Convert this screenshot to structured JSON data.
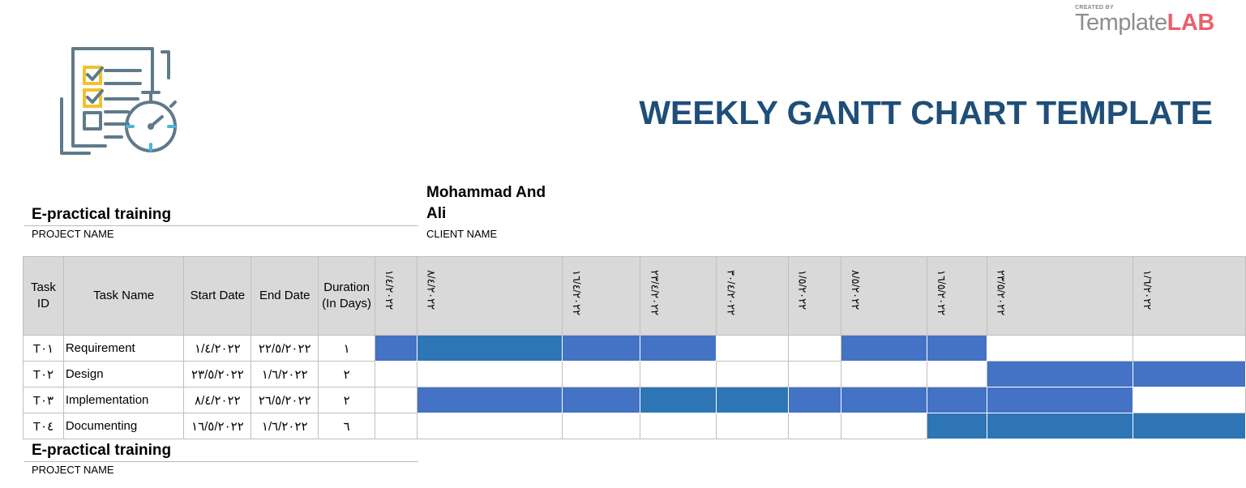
{
  "brand": {
    "created_by": "CREATED BY",
    "name_part1": "Template",
    "name_part2": "LAB"
  },
  "icon": "checklist-stopwatch-icon",
  "title": "WEEKLY GANTT CHART TEMPLATE",
  "project": {
    "value": "E-practical training",
    "label": "PROJECT NAME"
  },
  "client": {
    "value": "Mohammad And Ali",
    "label": "CLIENT NAME"
  },
  "footer_project": {
    "value": "E-practical training",
    "label": "PROJECT NAME"
  },
  "table": {
    "headers": {
      "task_id": "Task ID",
      "task_name": "Task Name",
      "start_date": "Start Date",
      "end_date": "End Date",
      "duration": "Duration (In Days)"
    },
    "week_dates": [
      "١/٤/٢٠٢٢",
      "٨/٤/٢٠٢٢",
      "١٦/٤/٢٠٢٢",
      "٢٣/٤/٢٠٢٢",
      "٣٠/٤/٢٠٢٢",
      "١/٥/٢٠٢٢",
      "٨/٥/٢٠٢٢",
      "١٦/٥/٢٠٢٢",
      "٢٣/٥/٢٠٢٢",
      "١/٦/٢٠٢٢"
    ],
    "rows": [
      {
        "id": "T٠١",
        "name": "Requirement",
        "start": "١/٤/٢٠٢٢",
        "end": "٢٢/٥/٢٠٢٢",
        "duration": "١",
        "bars": [
          "a",
          "b",
          "a",
          "a",
          "",
          "",
          "a",
          "a",
          "",
          ""
        ]
      },
      {
        "id": "T٠٢",
        "name": "Design",
        "start": "٢٣/٥/٢٠٢٢",
        "end": "١/٦/٢٠٢٢",
        "duration": "٢",
        "bars": [
          "",
          "",
          "",
          "",
          "",
          "",
          "",
          "",
          "a",
          "a"
        ]
      },
      {
        "id": "T٠٣",
        "name": "Implementation",
        "start": "٨/٤/٢٠٢٢",
        "end": "٢٦/٥/٢٠٢٢",
        "duration": "٢",
        "bars": [
          "",
          "a",
          "a",
          "b",
          "b",
          "a",
          "a",
          "a",
          "a",
          ""
        ]
      },
      {
        "id": "T٠٤",
        "name": "Documenting",
        "start": "١٦/٥/٢٠٢٢",
        "end": "١/٦/٢٠٢٢",
        "duration": "٦",
        "bars": [
          "",
          "",
          "",
          "",
          "",
          "",
          "",
          "b",
          "b",
          "b"
        ]
      }
    ]
  },
  "colors": {
    "title": "#1f4e79",
    "bar_primary": "#4472c4",
    "bar_secondary": "#2e75b6",
    "header_bg": "#d9d9d9",
    "brand_gray": "#8e8e8e",
    "brand_red": "#e8616c"
  }
}
